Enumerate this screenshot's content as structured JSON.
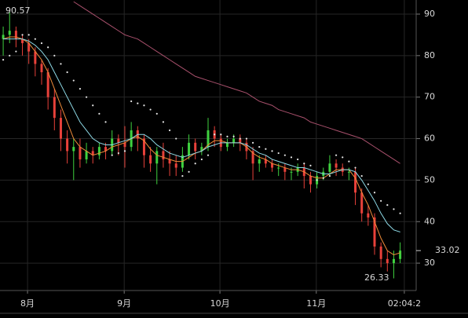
{
  "chart_data": {
    "type": "candlestick",
    "x": [
      1,
      3,
      5,
      7,
      9,
      11,
      13,
      15,
      17,
      19,
      21,
      23,
      25,
      27,
      29,
      31,
      33,
      35,
      37,
      39,
      41,
      43,
      45,
      47,
      49,
      51,
      53,
      55,
      57,
      59,
      61,
      63,
      65,
      67,
      69,
      71,
      73,
      75,
      77,
      79,
      81,
      83,
      85,
      87,
      89,
      91,
      93,
      95,
      97,
      99,
      101,
      103,
      105,
      107,
      109,
      111,
      113,
      115,
      117,
      119,
      121,
      123,
      125
    ],
    "open": [
      84,
      85,
      86,
      84,
      83,
      81,
      78,
      76,
      70,
      65,
      60,
      57,
      58,
      55,
      57,
      56,
      58,
      57,
      60,
      59,
      58,
      62,
      60,
      56,
      54,
      57,
      55,
      54,
      53,
      56,
      59,
      57,
      58,
      62,
      60,
      58,
      59,
      60,
      59,
      57,
      54,
      55,
      54,
      53,
      53,
      52,
      52,
      53,
      51,
      49,
      51,
      52,
      54,
      53,
      52,
      52,
      47,
      42,
      41,
      34,
      31,
      30,
      31
    ],
    "high": [
      87,
      90.57,
      87,
      85,
      84,
      82,
      79,
      77,
      72,
      67,
      62,
      60,
      60,
      59,
      58,
      59,
      59,
      62,
      61,
      63,
      64,
      63,
      61,
      58,
      58,
      59,
      57,
      56,
      58,
      61,
      60,
      59,
      65,
      63,
      61,
      60,
      61,
      61,
      60,
      58,
      56,
      56,
      55,
      54,
      54,
      53,
      54,
      54,
      52,
      52,
      53,
      56,
      55,
      54,
      53,
      53,
      48,
      44,
      42,
      35,
      33,
      33,
      35
    ],
    "low": [
      80,
      83,
      82,
      80,
      78,
      75,
      73,
      67,
      62,
      57,
      54,
      50,
      53,
      54,
      54,
      55,
      55,
      56,
      56,
      53,
      57,
      57,
      53,
      52,
      49,
      53,
      51,
      51,
      52,
      55,
      55,
      56,
      57,
      58,
      57,
      57,
      58,
      57,
      55,
      50,
      52,
      53,
      52,
      51,
      50,
      50,
      51,
      48,
      47,
      48,
      50,
      51,
      51,
      51,
      50,
      44,
      40,
      39,
      32,
      29,
      28,
      26.33,
      30
    ],
    "close": [
      85,
      86,
      84,
      83,
      81,
      78,
      76,
      70,
      65,
      60,
      57,
      58,
      55,
      57,
      56,
      58,
      57,
      60,
      59,
      58,
      62,
      60,
      56,
      54,
      57,
      55,
      54,
      53,
      56,
      59,
      57,
      58,
      62,
      60,
      58,
      59,
      60,
      59,
      57,
      54,
      55,
      54,
      53,
      53,
      52,
      52,
      53,
      51,
      49,
      51,
      52,
      54,
      53,
      52,
      52,
      47,
      42,
      41,
      34,
      31,
      30,
      31,
      33.02
    ],
    "up_color": "#3fd13f",
    "down_color": "#e8413a",
    "lines": [
      {
        "color": "#f08c3a",
        "values": [
          84,
          84.5,
          84.5,
          84,
          83,
          81,
          79,
          76,
          72,
          68,
          64,
          60,
          58,
          57,
          56,
          56.5,
          57,
          58,
          58.5,
          59,
          60,
          60.5,
          59.5,
          57.5,
          56,
          55.5,
          55,
          54.5,
          54.5,
          55.5,
          56.5,
          57,
          58.5,
          59.5,
          59.5,
          59,
          59,
          59,
          58,
          56.5,
          55.5,
          55,
          54,
          53.5,
          53,
          52.5,
          52.5,
          52,
          51,
          50.5,
          50.5,
          51.5,
          52.5,
          52.5,
          52.5,
          50.5,
          47,
          44,
          40,
          36,
          33,
          32,
          32.5
        ]
      },
      {
        "color": "#8fdbe8",
        "values": [
          84,
          84,
          84,
          84,
          83.5,
          82.5,
          81,
          79,
          76,
          73,
          70,
          67,
          64,
          62,
          60,
          59,
          58.5,
          58.5,
          59,
          59.5,
          60,
          61,
          61,
          60,
          58.5,
          57.5,
          56.5,
          56,
          55.5,
          56,
          56.5,
          57,
          58,
          58.5,
          59,
          59,
          59,
          59,
          58.5,
          57.5,
          56.5,
          56,
          55,
          54.5,
          54,
          53.5,
          53,
          53,
          52.5,
          52,
          51.5,
          51.5,
          52,
          52.5,
          52.5,
          52,
          50,
          47.5,
          45,
          42,
          39.5,
          38,
          37.5
        ]
      },
      {
        "color": "#a8506c",
        "values": [
          null,
          null,
          null,
          null,
          null,
          null,
          null,
          null,
          null,
          null,
          null,
          93,
          92,
          91,
          90,
          89,
          88,
          87,
          86,
          85,
          84.5,
          84,
          83,
          82,
          81,
          80,
          79,
          78,
          77,
          76,
          75,
          74.5,
          74,
          73.5,
          73,
          72.5,
          72,
          71.5,
          71,
          70,
          69,
          68.5,
          68,
          67,
          66.5,
          66,
          65.5,
          65,
          64,
          63.5,
          63,
          62.5,
          62,
          61.5,
          61,
          60.5,
          60,
          59,
          58,
          57,
          56,
          55,
          54
        ]
      }
    ],
    "sar": {
      "color": "#e6e6e6",
      "values": [
        79,
        80,
        81,
        85,
        85,
        84,
        83,
        82,
        80,
        78,
        76,
        74,
        72,
        70,
        68,
        66,
        64,
        56,
        56.5,
        57,
        69,
        68.5,
        68,
        67,
        66,
        64,
        62,
        60,
        51,
        52,
        54,
        55,
        56,
        61,
        61,
        60.5,
        60.5,
        60,
        60,
        59,
        58,
        57.5,
        57,
        56.5,
        56,
        55.5,
        55,
        54,
        53.5,
        50,
        50.5,
        51,
        56,
        55.5,
        54.5,
        53,
        51,
        49,
        47,
        45,
        44,
        43,
        42
      ]
    },
    "xlim": [
      0,
      130
    ],
    "xticks": [
      {
        "value": 8.6,
        "label": "8月"
      },
      {
        "value": 38.8,
        "label": "9月"
      },
      {
        "value": 68.7,
        "label": "10月"
      },
      {
        "value": 98.8,
        "label": "11月"
      },
      {
        "value": 126.3,
        "label": "02:04:2"
      }
    ],
    "ylim": [
      23.4,
      93.4
    ],
    "yticks": [
      30,
      40,
      50,
      60,
      70,
      80,
      90
    ],
    "grid": true,
    "annotations": [
      "90.57",
      "26.33",
      "33.02"
    ]
  }
}
